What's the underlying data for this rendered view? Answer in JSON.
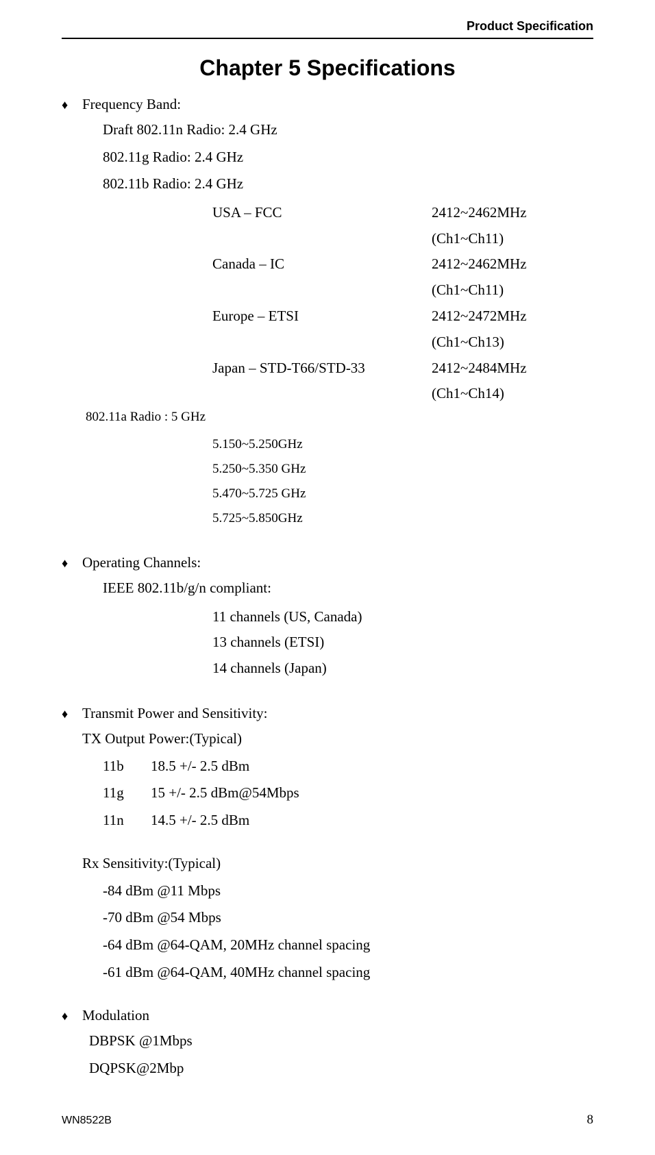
{
  "header": {
    "title": "Product Specification"
  },
  "chapter": {
    "title": "Chapter 5    Specifications"
  },
  "freq": {
    "heading": "Frequency Band:",
    "lines": [
      "Draft 802.11n Radio: 2.4 GHz",
      "802.11g Radio: 2.4 GHz",
      "802.11b Radio: 2.4 GHz"
    ],
    "regions": [
      {
        "name": "USA – FCC",
        "range": "2412~2462MHz (Ch1~Ch11)"
      },
      {
        "name": "Canada – IC",
        "range": "2412~2462MHz (Ch1~Ch11)"
      },
      {
        "name": "Europe – ETSI",
        "range": "2412~2472MHz (Ch1~Ch13)"
      },
      {
        "name": "Japan – STD-T66/STD-33",
        "range": "2412~2484MHz (Ch1~Ch14)"
      }
    ],
    "radio_a": "802.11a Radio : 5 GHz",
    "a_ranges": [
      "5.150~5.250GHz",
      "5.250~5.350 GHz",
      "5.470~5.725 GHz",
      "5.725~5.850GHz"
    ]
  },
  "channels": {
    "heading": "Operating Channels:",
    "compliant": "IEEE 802.11b/g/n compliant:",
    "list": [
      "11 channels (US, Canada)",
      "13 channels (ETSI)",
      "14 channels (Japan)"
    ]
  },
  "power": {
    "heading": "Transmit Power and Sensitivity:",
    "tx_header": "TX Output Power:(Typical)",
    "tx": [
      {
        "label": "11b",
        "value": "18.5 +/- 2.5 dBm"
      },
      {
        "label": "11g",
        "value": "15 +/- 2.5 dBm@54Mbps"
      },
      {
        "label": "11n",
        "value": "14.5 +/- 2.5 dBm"
      }
    ],
    "rx_header": "Rx Sensitivity:(Typical)",
    "rx": [
      "-84 dBm @11 Mbps",
      "-70 dBm @54 Mbps",
      "-64 dBm @64-QAM, 20MHz channel spacing",
      "-61 dBm @64-QAM, 40MHz channel spacing"
    ]
  },
  "modulation": {
    "heading": "Modulation",
    "list": [
      "DBPSK @1Mbps",
      "DQPSK@2Mbp"
    ]
  },
  "footer": {
    "model": "WN8522B",
    "page": "8"
  }
}
